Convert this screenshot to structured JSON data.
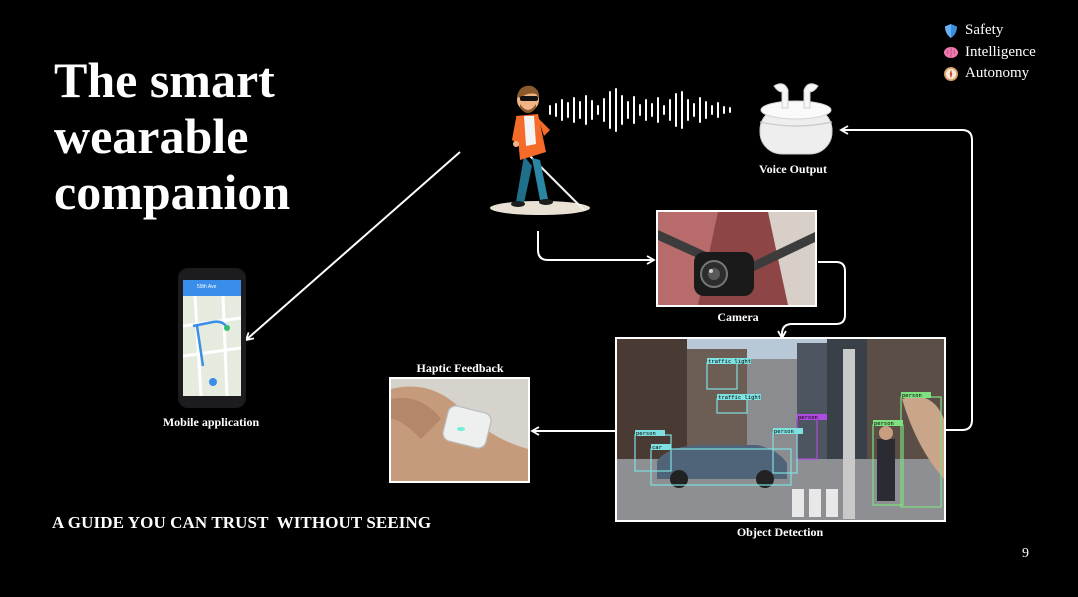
{
  "title": {
    "line1": "The smart",
    "line2": "wearable",
    "line3": "companion"
  },
  "legend": {
    "items": [
      {
        "label": "Safety",
        "icon": "shield-icon",
        "color": "#3b8fe0"
      },
      {
        "label": "Intelligence",
        "icon": "brain-icon",
        "color": "#f07ab0"
      },
      {
        "label": "Autonomy",
        "icon": "compass-icon",
        "color": "#d9a066"
      }
    ]
  },
  "captions": {
    "voice_output": "Voice Output",
    "camera": "Camera",
    "object_detection": "Object Detection",
    "haptic_feedback": "Haptic Feedback",
    "mobile_application": "Mobile application"
  },
  "phone": {
    "street": "59th Ave"
  },
  "detection_labels": [
    "traffic light",
    "traffic light",
    "person",
    "person",
    "car",
    "person",
    "person",
    "person"
  ],
  "tagline": "A GUIDE YOU CAN TRUST  WITHOUT SEEING",
  "page_number": "9"
}
